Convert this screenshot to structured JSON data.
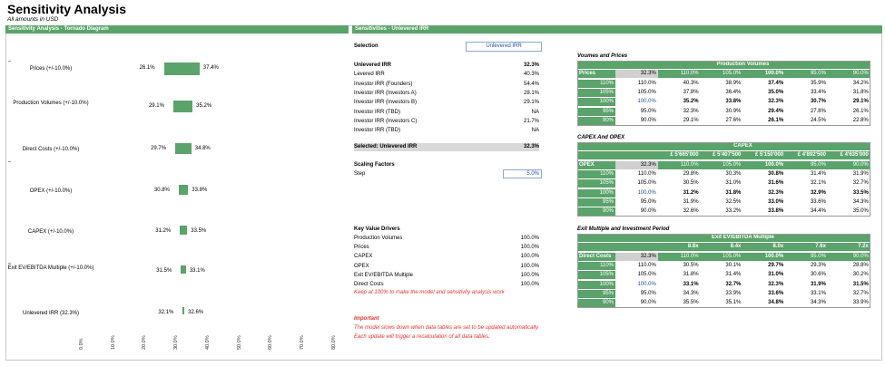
{
  "header": {
    "title": "Sensitivity Analysis",
    "subtitle": "All amounts in USD"
  },
  "bands": {
    "tornado": "Sensitivity Analysis - Tornado Diagram",
    "sensitivities": "Sensitivities - Unlevered IRR"
  },
  "tornado": {
    "rows": [
      {
        "label": "Prices (+/-10.0%)",
        "low": "26.1%",
        "high": "37.4%",
        "low_v": 26.1,
        "high_v": 37.4
      },
      {
        "label": "Production Volumes (+/-10.0%)",
        "low": "29.1%",
        "high": "35.2%",
        "low_v": 29.1,
        "high_v": 35.2
      },
      {
        "label": "Direct  Costs (+/-10.0%)",
        "low": "29.7%",
        "high": "34.8%",
        "low_v": 29.7,
        "high_v": 34.8
      },
      {
        "label": "OPEX (+/-10.0%)",
        "low": "30.8%",
        "high": "33.8%",
        "low_v": 30.8,
        "high_v": 33.8
      },
      {
        "label": "CAPEX (+/-10.0%)",
        "low": "31.2%",
        "high": "33.5%",
        "low_v": 31.2,
        "high_v": 33.5
      },
      {
        "label": "Exit EV/EBITDA Multiple (+/-10.0%)",
        "low": "31.5%",
        "high": "33.1%",
        "low_v": 31.5,
        "high_v": 33.1
      },
      {
        "label": "Unlevered IRR (32.3%)",
        "low": "32.1%",
        "high": "32.6%",
        "low_v": 32.1,
        "high_v": 32.6
      }
    ],
    "axis_ticks": [
      "0.0%",
      "10.0%",
      "20.0%",
      "30.0%",
      "40.0%",
      "50.0%",
      "60.0%",
      "70.0%",
      "80.0%"
    ]
  },
  "selection": {
    "label": "Selection",
    "value": "Unlevered IRR"
  },
  "irr_list": [
    {
      "label": "Unlevered IRR",
      "value": "32.3%",
      "bold": true
    },
    {
      "label": "Levered IRR",
      "value": "40.3%"
    },
    {
      "label": "Investor IRR (Founders)",
      "value": "54.4%"
    },
    {
      "label": "Investor IRR (Investors A)",
      "value": "28.1%"
    },
    {
      "label": "Investor IRR (Investors B)",
      "value": "29.1%"
    },
    {
      "label": "Investor IRR (TBD)",
      "value": "NA"
    },
    {
      "label": "Investor IRR (Investors C)",
      "value": "21.7%"
    },
    {
      "label": "Investor IRR (TBD)",
      "value": "NA"
    }
  ],
  "selected_row": {
    "label": "Selected: Unlevered IRR",
    "value": "32.3%"
  },
  "scaling": {
    "title": "Scaling Factors",
    "step_label": "Step",
    "step_value": "5.0%"
  },
  "drivers": {
    "title": "Key Value Drivers",
    "rows": [
      {
        "label": "Production Volumes",
        "value": "100.0%"
      },
      {
        "label": "Prices",
        "value": "100.0%"
      },
      {
        "label": "CAPEX",
        "value": "100.0%"
      },
      {
        "label": "OPEX",
        "value": "100.0%"
      },
      {
        "label": "Exit EV/EBITDA Multiple",
        "value": "100.0%"
      },
      {
        "label": "Direct  Costs",
        "value": "100.0%"
      }
    ],
    "note": "Keep at 100% to make the model and sensitivity analysis work"
  },
  "important": {
    "title": "Important",
    "line1": "The model slows down when data tables are set to be updated automatically",
    "line2": "Each update will trigger a recalculation of all data tables."
  },
  "table1": {
    "title": "Voumes and Prices",
    "col_header": "Production Volumes",
    "row_header": "Prices",
    "corner": "32.3%",
    "cols": [
      "110.0%",
      "105.0%",
      "100.0%",
      "95.0%",
      "90.0%"
    ],
    "rows": [
      {
        "h": "110%",
        "cells": [
          "110.0%",
          "40.3%",
          "38.9%",
          "37.4%",
          "35.9%",
          "34.2%"
        ]
      },
      {
        "h": "105%",
        "cells": [
          "105.0%",
          "37.8%",
          "36.4%",
          "35.0%",
          "33.4%",
          "31.8%"
        ]
      },
      {
        "h": "100%",
        "cells": [
          "100.0%",
          "35.2%",
          "33.8%",
          "32.3%",
          "30.7%",
          "29.1%"
        ]
      },
      {
        "h": "95%",
        "cells": [
          "95.0%",
          "32.3%",
          "30.9%",
          "29.4%",
          "27.8%",
          "26.1%"
        ]
      },
      {
        "h": "90%",
        "cells": [
          "90.0%",
          "29.1%",
          "27.6%",
          "26.1%",
          "24.5%",
          "22.8%"
        ]
      }
    ]
  },
  "table2": {
    "title": "CAPEX And OPEX",
    "col_header": "CAPEX",
    "row_header": "OPEX",
    "corner": "32.3%",
    "amounts": [
      "£   5'665'000",
      "£   5'407'500",
      "£   5'150'000",
      "£   4'892'500",
      "£   4'635'000"
    ],
    "cols": [
      "110.0%",
      "105.0%",
      "100.0%",
      "95.0%",
      "90.0%"
    ],
    "rows": [
      {
        "h": "110%",
        "cells": [
          "110.0%",
          "29.8%",
          "30.3%",
          "30.8%",
          "31.4%",
          "31.9%"
        ]
      },
      {
        "h": "105%",
        "cells": [
          "105.0%",
          "30.5%",
          "31.0%",
          "31.6%",
          "32.1%",
          "32.7%"
        ]
      },
      {
        "h": "100%",
        "cells": [
          "100.0%",
          "31.2%",
          "31.8%",
          "32.3%",
          "32.9%",
          "33.5%"
        ]
      },
      {
        "h": "95%",
        "cells": [
          "95.0%",
          "31.9%",
          "32.5%",
          "33.0%",
          "33.6%",
          "34.3%"
        ]
      },
      {
        "h": "90%",
        "cells": [
          "90.0%",
          "32.6%",
          "33.2%",
          "33.8%",
          "34.4%",
          "35.0%"
        ]
      }
    ]
  },
  "table3": {
    "title": "Exit Multiple and Investment Period",
    "col_header": "Exit EV/EBITDA Multiple",
    "row_header": "Direct  Costs",
    "corner": "32.3%",
    "amounts": [
      "8.8x",
      "8.4x",
      "8.0x",
      "7.6x",
      "7.2x"
    ],
    "cols": [
      "110.0%",
      "105.0%",
      "100.0%",
      "95.0%",
      "90.0%"
    ],
    "rows": [
      {
        "h": "110%",
        "cells": [
          "110.0%",
          "30.5%",
          "30.1%",
          "29.7%",
          "29.3%",
          "28.8%"
        ]
      },
      {
        "h": "105%",
        "cells": [
          "105.0%",
          "31.8%",
          "31.4%",
          "31.0%",
          "30.6%",
          "30.2%"
        ]
      },
      {
        "h": "100%",
        "cells": [
          "100.0%",
          "33.1%",
          "32.7%",
          "32.3%",
          "31.9%",
          "31.5%"
        ]
      },
      {
        "h": "95%",
        "cells": [
          "95.0%",
          "34.3%",
          "33.9%",
          "33.6%",
          "33.1%",
          "32.7%"
        ]
      },
      {
        "h": "90%",
        "cells": [
          "90.0%",
          "35.5%",
          "35.1%",
          "34.8%",
          "34.3%",
          "33.9%"
        ]
      }
    ]
  },
  "colors": {
    "green": "#5aa36a",
    "gray": "#d9d9d9",
    "blue": "#1f4e9c",
    "red": "#e33333"
  }
}
